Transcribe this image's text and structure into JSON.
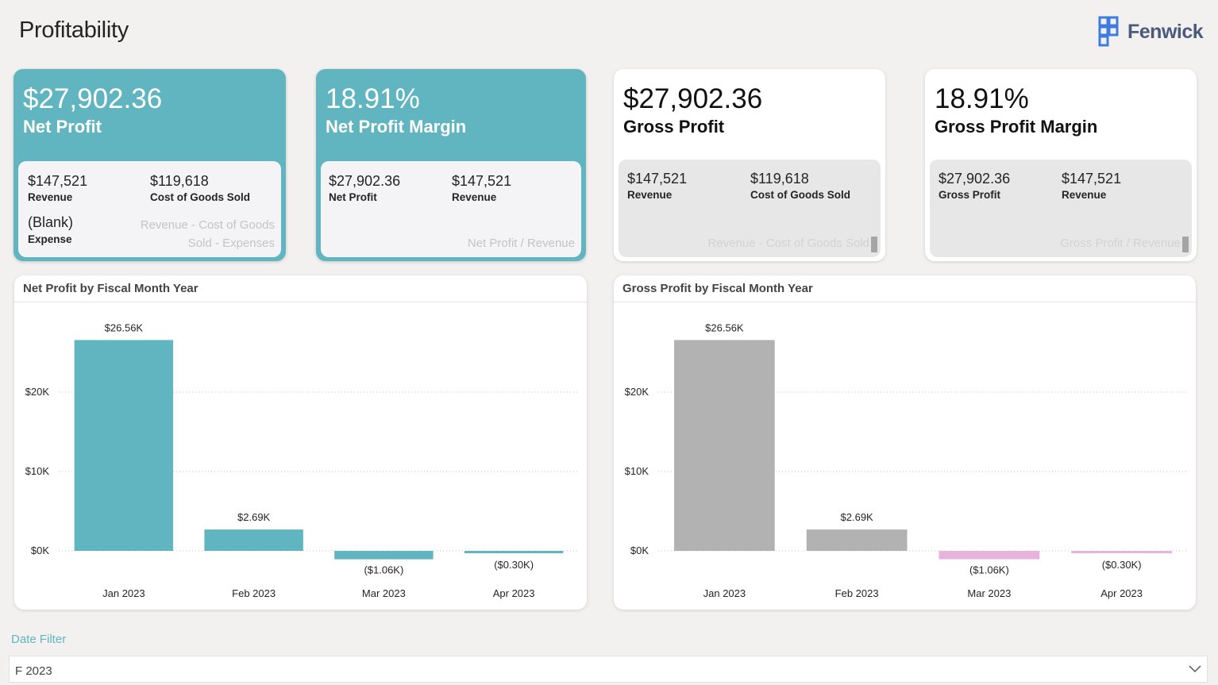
{
  "page": {
    "title": "Profitability",
    "logo_text": "Fenwick"
  },
  "colors": {
    "teal": "#60b5c1",
    "gray_bar": "#b2b2b2",
    "pink_bar": "#e6b3dc",
    "background": "#f2f1f0"
  },
  "kpis": [
    {
      "value": "$27,902.36",
      "label": "Net Profit",
      "style": "teal",
      "subs": [
        {
          "value": "$147,521",
          "label": "Revenue"
        },
        {
          "value": "$119,618",
          "label": "Cost of Goods Sold"
        },
        {
          "value": "(Blank)",
          "label": "Expense"
        }
      ],
      "formula_lines": [
        "Revenue - Cost of Goods",
        "Sold - Expenses"
      ]
    },
    {
      "value": "18.91%",
      "label": "Net Profit Margin",
      "style": "teal",
      "subs": [
        {
          "value": "$27,902.36",
          "label": "Net Profit"
        },
        {
          "value": "$147,521",
          "label": "Revenue"
        }
      ],
      "formula_lines": [
        "Net Profit / Revenue"
      ]
    },
    {
      "value": "$27,902.36",
      "label": "Gross Profit",
      "style": "white",
      "subs": [
        {
          "value": "$147,521",
          "label": "Revenue"
        },
        {
          "value": "$119,618",
          "label": "Cost of Goods Sold"
        }
      ],
      "formula_lines": [
        "Revenue - Cost of Goods Sold"
      ]
    },
    {
      "value": "18.91%",
      "label": "Gross Profit Margin",
      "style": "white",
      "subs": [
        {
          "value": "$27,902.36",
          "label": "Gross Profit"
        },
        {
          "value": "$147,521",
          "label": "Revenue"
        }
      ],
      "formula_lines": [
        "Gross Profit / Revenue"
      ]
    }
  ],
  "chart_data": [
    {
      "type": "bar",
      "title": "Net Profit by Fiscal Month Year",
      "categories": [
        "Jan 2023",
        "Feb 2023",
        "Mar 2023",
        "Apr 2023"
      ],
      "values": [
        26560,
        2690,
        -1060,
        -300
      ],
      "data_labels": [
        "$26.56K",
        "$2.69K",
        "($1.06K)",
        "($0.30K)"
      ],
      "y_ticks": [
        0,
        10000,
        20000
      ],
      "y_tick_labels": [
        "$0K",
        "$10K",
        "$20K"
      ],
      "ylim": [
        -1500,
        28000
      ],
      "grid": true,
      "positive_color": "#60b5c1",
      "negative_color": "#60b5c1"
    },
    {
      "type": "bar",
      "title": "Gross Profit by Fiscal Month Year",
      "categories": [
        "Jan 2023",
        "Feb 2023",
        "Mar 2023",
        "Apr 2023"
      ],
      "values": [
        26560,
        2690,
        -1060,
        -300
      ],
      "data_labels": [
        "$26.56K",
        "$2.69K",
        "($1.06K)",
        "($0.30K)"
      ],
      "y_ticks": [
        0,
        10000,
        20000
      ],
      "y_tick_labels": [
        "$0K",
        "$10K",
        "$20K"
      ],
      "ylim": [
        -1500,
        28000
      ],
      "grid": true,
      "positive_color": "#b2b2b2",
      "negative_color": "#e6b3dc"
    }
  ],
  "filter": {
    "label": "Date Filter",
    "value": "F 2023"
  }
}
